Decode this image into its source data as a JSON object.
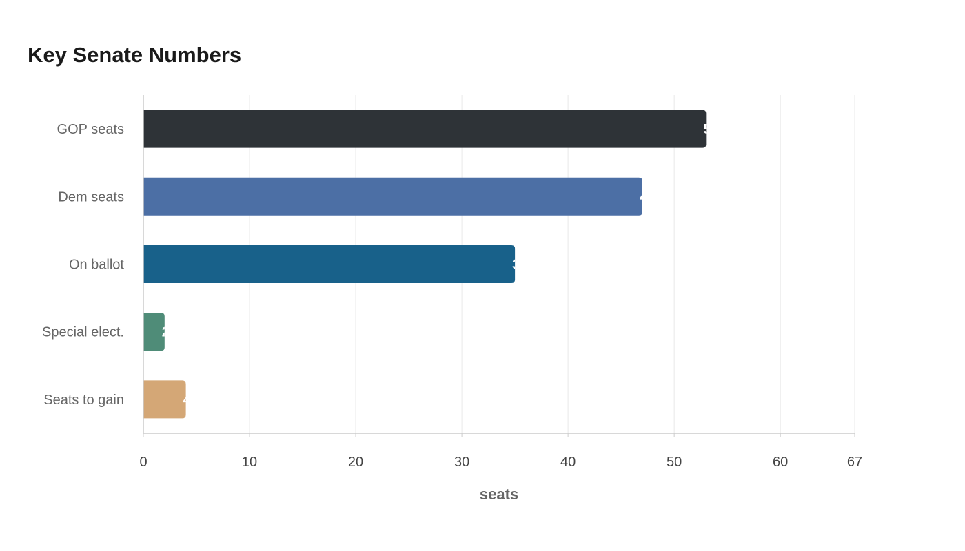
{
  "chart_data": {
    "type": "bar",
    "orientation": "horizontal",
    "title": "Key Senate Numbers",
    "xlabel": "seats",
    "ylabel": "",
    "xlim": [
      0,
      67
    ],
    "x_ticks": [
      0,
      10,
      20,
      30,
      40,
      50,
      60,
      67
    ],
    "categories": [
      "GOP seats",
      "Dem seats",
      "On ballot",
      "Special elect.",
      "Seats to gain"
    ],
    "values": [
      53,
      47,
      35,
      2,
      4
    ],
    "colors": [
      "#2e3337",
      "#4c6fa5",
      "#18618a",
      "#4f8c78",
      "#d4a776"
    ],
    "grid": true,
    "legend": "none"
  }
}
